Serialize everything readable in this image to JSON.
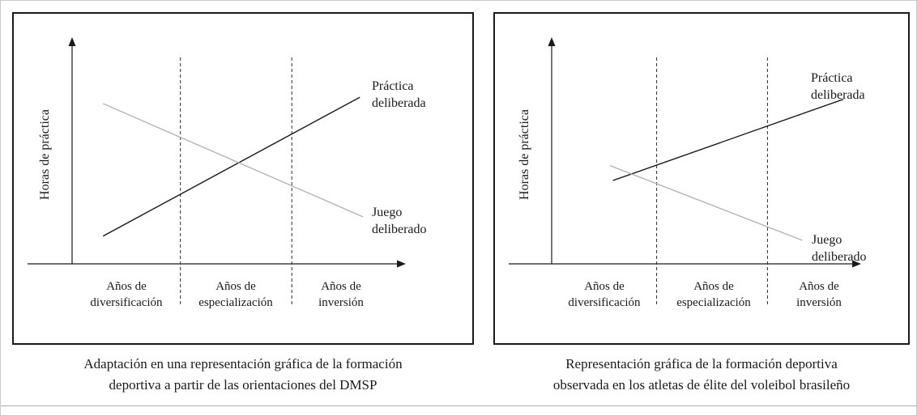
{
  "chart_data": [
    {
      "type": "line",
      "caption": "Adaptación en una representación gráfica de la formación\ndeportiva a partir de las orientaciones del DMSP",
      "ylabel": "Horas de práctica",
      "xlabel": "",
      "x_phases": [
        "Años de\ndiversificación",
        "Años de\nespecialización",
        "Años de\ninversión"
      ],
      "phase_dividers": [
        0.35,
        0.71
      ],
      "axes": {
        "x_arrow": true,
        "y_arrow": true,
        "ticks": false,
        "grid": false,
        "numeric_scale": false
      },
      "series": [
        {
          "name": "Práctica\ndeliberada",
          "color": "#1a1a1a",
          "trend": "increasing",
          "points": [
            [
              0.1,
              0.13
            ],
            [
              0.93,
              0.78
            ]
          ]
        },
        {
          "name": "Juego\ndeliberado",
          "color": "#b3b3b3",
          "trend": "decreasing",
          "points": [
            [
              0.1,
              0.75
            ],
            [
              0.94,
              0.22
            ]
          ]
        }
      ]
    },
    {
      "type": "line",
      "caption": "Representación gráfica de la formación deportiva\nobservada en los atletas de élite del voleibol brasileño",
      "ylabel": "Horas de práctica",
      "xlabel": "",
      "x_phases": [
        "Años de\ndiversificación",
        "Años de\nespecialización",
        "Años de\ninversión"
      ],
      "phase_dividers": [
        0.36,
        0.74
      ],
      "axes": {
        "x_arrow": true,
        "y_arrow": true,
        "ticks": false,
        "grid": false,
        "numeric_scale": false
      },
      "series": [
        {
          "name": "Práctica\ndeliberada",
          "color": "#1a1a1a",
          "trend": "increasing",
          "points": [
            [
              0.21,
              0.39
            ],
            [
              1.0,
              0.77
            ]
          ]
        },
        {
          "name": "Juego\ndeliberado",
          "color": "#b3b3b3",
          "trend": "decreasing",
          "points": [
            [
              0.2,
              0.46
            ],
            [
              0.86,
              0.11
            ]
          ]
        }
      ]
    }
  ],
  "colors": {
    "ink": "#1a1a1a",
    "play_line_gray": "#b3b3b3",
    "panel_border": "#1a1a1a",
    "page_border": "#c9c9c9"
  }
}
